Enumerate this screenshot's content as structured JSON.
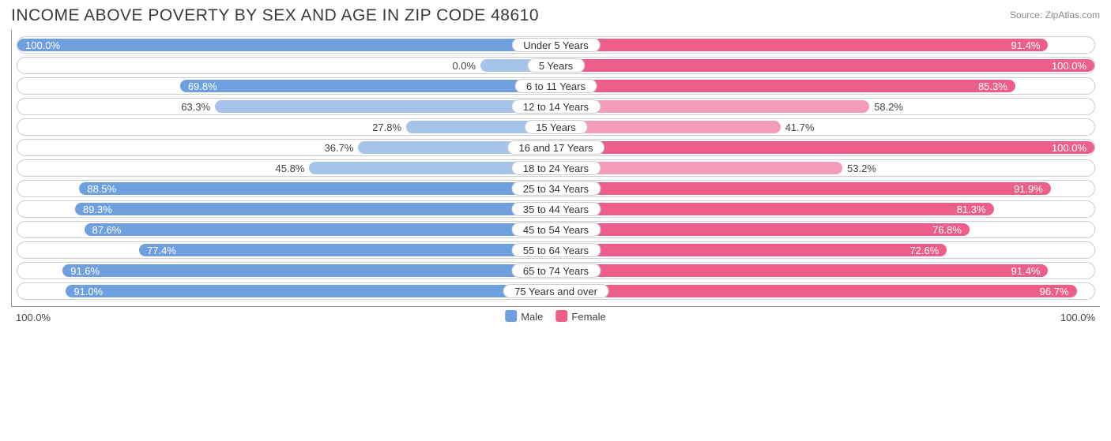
{
  "title": "Income Above Poverty by Sex and Age in Zip Code 48610",
  "source": "Source: ZipAtlas.com",
  "colors": {
    "male": "#6e9fde",
    "female": "#ed5f8a",
    "male_light": "#a6c4ea",
    "female_light": "#f49cb8",
    "border": "#cccccc",
    "text": "#3a3a3a"
  },
  "axis": {
    "left_label": "100.0%",
    "right_label": "100.0%"
  },
  "legend": {
    "male": "Male",
    "female": "Female"
  },
  "value_suffix": "%",
  "inside_threshold": 65,
  "light_threshold": 65,
  "rows": [
    {
      "label": "Under 5 Years",
      "male": 100.0,
      "female": 91.4
    },
    {
      "label": "5 Years",
      "male": 0.0,
      "female": 100.0,
      "male_light": true
    },
    {
      "label": "6 to 11 Years",
      "male": 69.8,
      "female": 85.3
    },
    {
      "label": "12 to 14 Years",
      "male": 63.3,
      "female": 58.2,
      "female_light": true
    },
    {
      "label": "15 Years",
      "male": 27.8,
      "female": 41.7,
      "male_light": true,
      "female_light": true
    },
    {
      "label": "16 and 17 Years",
      "male": 36.7,
      "female": 100.0,
      "male_light": true
    },
    {
      "label": "18 to 24 Years",
      "male": 45.8,
      "female": 53.2,
      "male_light": true,
      "female_light": true
    },
    {
      "label": "25 to 34 Years",
      "male": 88.5,
      "female": 91.9
    },
    {
      "label": "35 to 44 Years",
      "male": 89.3,
      "female": 81.3
    },
    {
      "label": "45 to 54 Years",
      "male": 87.6,
      "female": 76.8
    },
    {
      "label": "55 to 64 Years",
      "male": 77.4,
      "female": 72.6
    },
    {
      "label": "65 to 74 Years",
      "male": 91.6,
      "female": 91.4
    },
    {
      "label": "75 Years and over",
      "male": 91.0,
      "female": 96.7
    }
  ]
}
